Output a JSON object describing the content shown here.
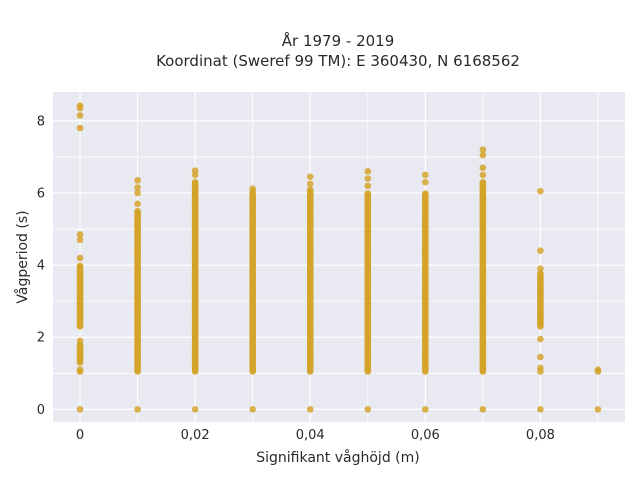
{
  "chart_data": {
    "type": "scatter",
    "title_line1": "År 1979 - 2019",
    "title_line2": "Koordinat (Sweref 99 TM): E 360430, N 6168562",
    "xlabel": "Signifikant våghöjd (m)",
    "ylabel": "Vågperiod (s)",
    "xlim": [
      -0.0047,
      0.0947
    ],
    "ylim": [
      -0.35,
      8.8
    ],
    "xticks": [
      0,
      0.02,
      0.04,
      0.06,
      0.08
    ],
    "xtick_labels": [
      "0",
      "0,02",
      "0,04",
      "0,06",
      "0,08"
    ],
    "yticks": [
      0,
      2,
      4,
      6,
      8
    ],
    "ytick_labels": [
      "0",
      "2",
      "4",
      "6",
      "8"
    ],
    "grid": true,
    "background": "#e9e9f1",
    "grid_color": "#ffffff",
    "marker_color": "#d4a32a",
    "columns": [
      {
        "x": 0.0,
        "bands": [
          [
            2.3,
            4.0
          ],
          [
            1.3,
            1.8
          ]
        ],
        "points": [
          0,
          1.05,
          1.1,
          1.9,
          4.2,
          4.7,
          4.85,
          7.8,
          8.15,
          8.35,
          8.42
        ]
      },
      {
        "x": 0.01,
        "bands": [
          [
            1.05,
            5.5
          ]
        ],
        "points": [
          0,
          5.7,
          6.0,
          6.15,
          6.35
        ]
      },
      {
        "x": 0.02,
        "bands": [
          [
            1.05,
            6.3
          ]
        ],
        "points": [
          0,
          6.5,
          6.62
        ]
      },
      {
        "x": 0.03,
        "bands": [
          [
            1.05,
            6.0
          ]
        ],
        "points": [
          0,
          6.05,
          6.12
        ]
      },
      {
        "x": 0.04,
        "bands": [
          [
            1.05,
            6.1
          ]
        ],
        "points": [
          0,
          6.25,
          6.45
        ]
      },
      {
        "x": 0.05,
        "bands": [
          [
            1.05,
            6.0
          ]
        ],
        "points": [
          0,
          6.2,
          6.4,
          6.6
        ]
      },
      {
        "x": 0.06,
        "bands": [
          [
            1.05,
            6.0
          ]
        ],
        "points": [
          0,
          6.3,
          6.5
        ]
      },
      {
        "x": 0.07,
        "bands": [
          [
            1.05,
            6.3
          ]
        ],
        "points": [
          0,
          6.5,
          6.7,
          7.05,
          7.2
        ]
      },
      {
        "x": 0.08,
        "bands": [
          [
            2.3,
            3.8
          ]
        ],
        "points": [
          0,
          1.05,
          1.15,
          1.45,
          1.95,
          3.9,
          4.4,
          6.05
        ]
      },
      {
        "x": 0.09,
        "bands": [],
        "points": [
          0,
          1.05,
          1.1
        ]
      }
    ]
  }
}
